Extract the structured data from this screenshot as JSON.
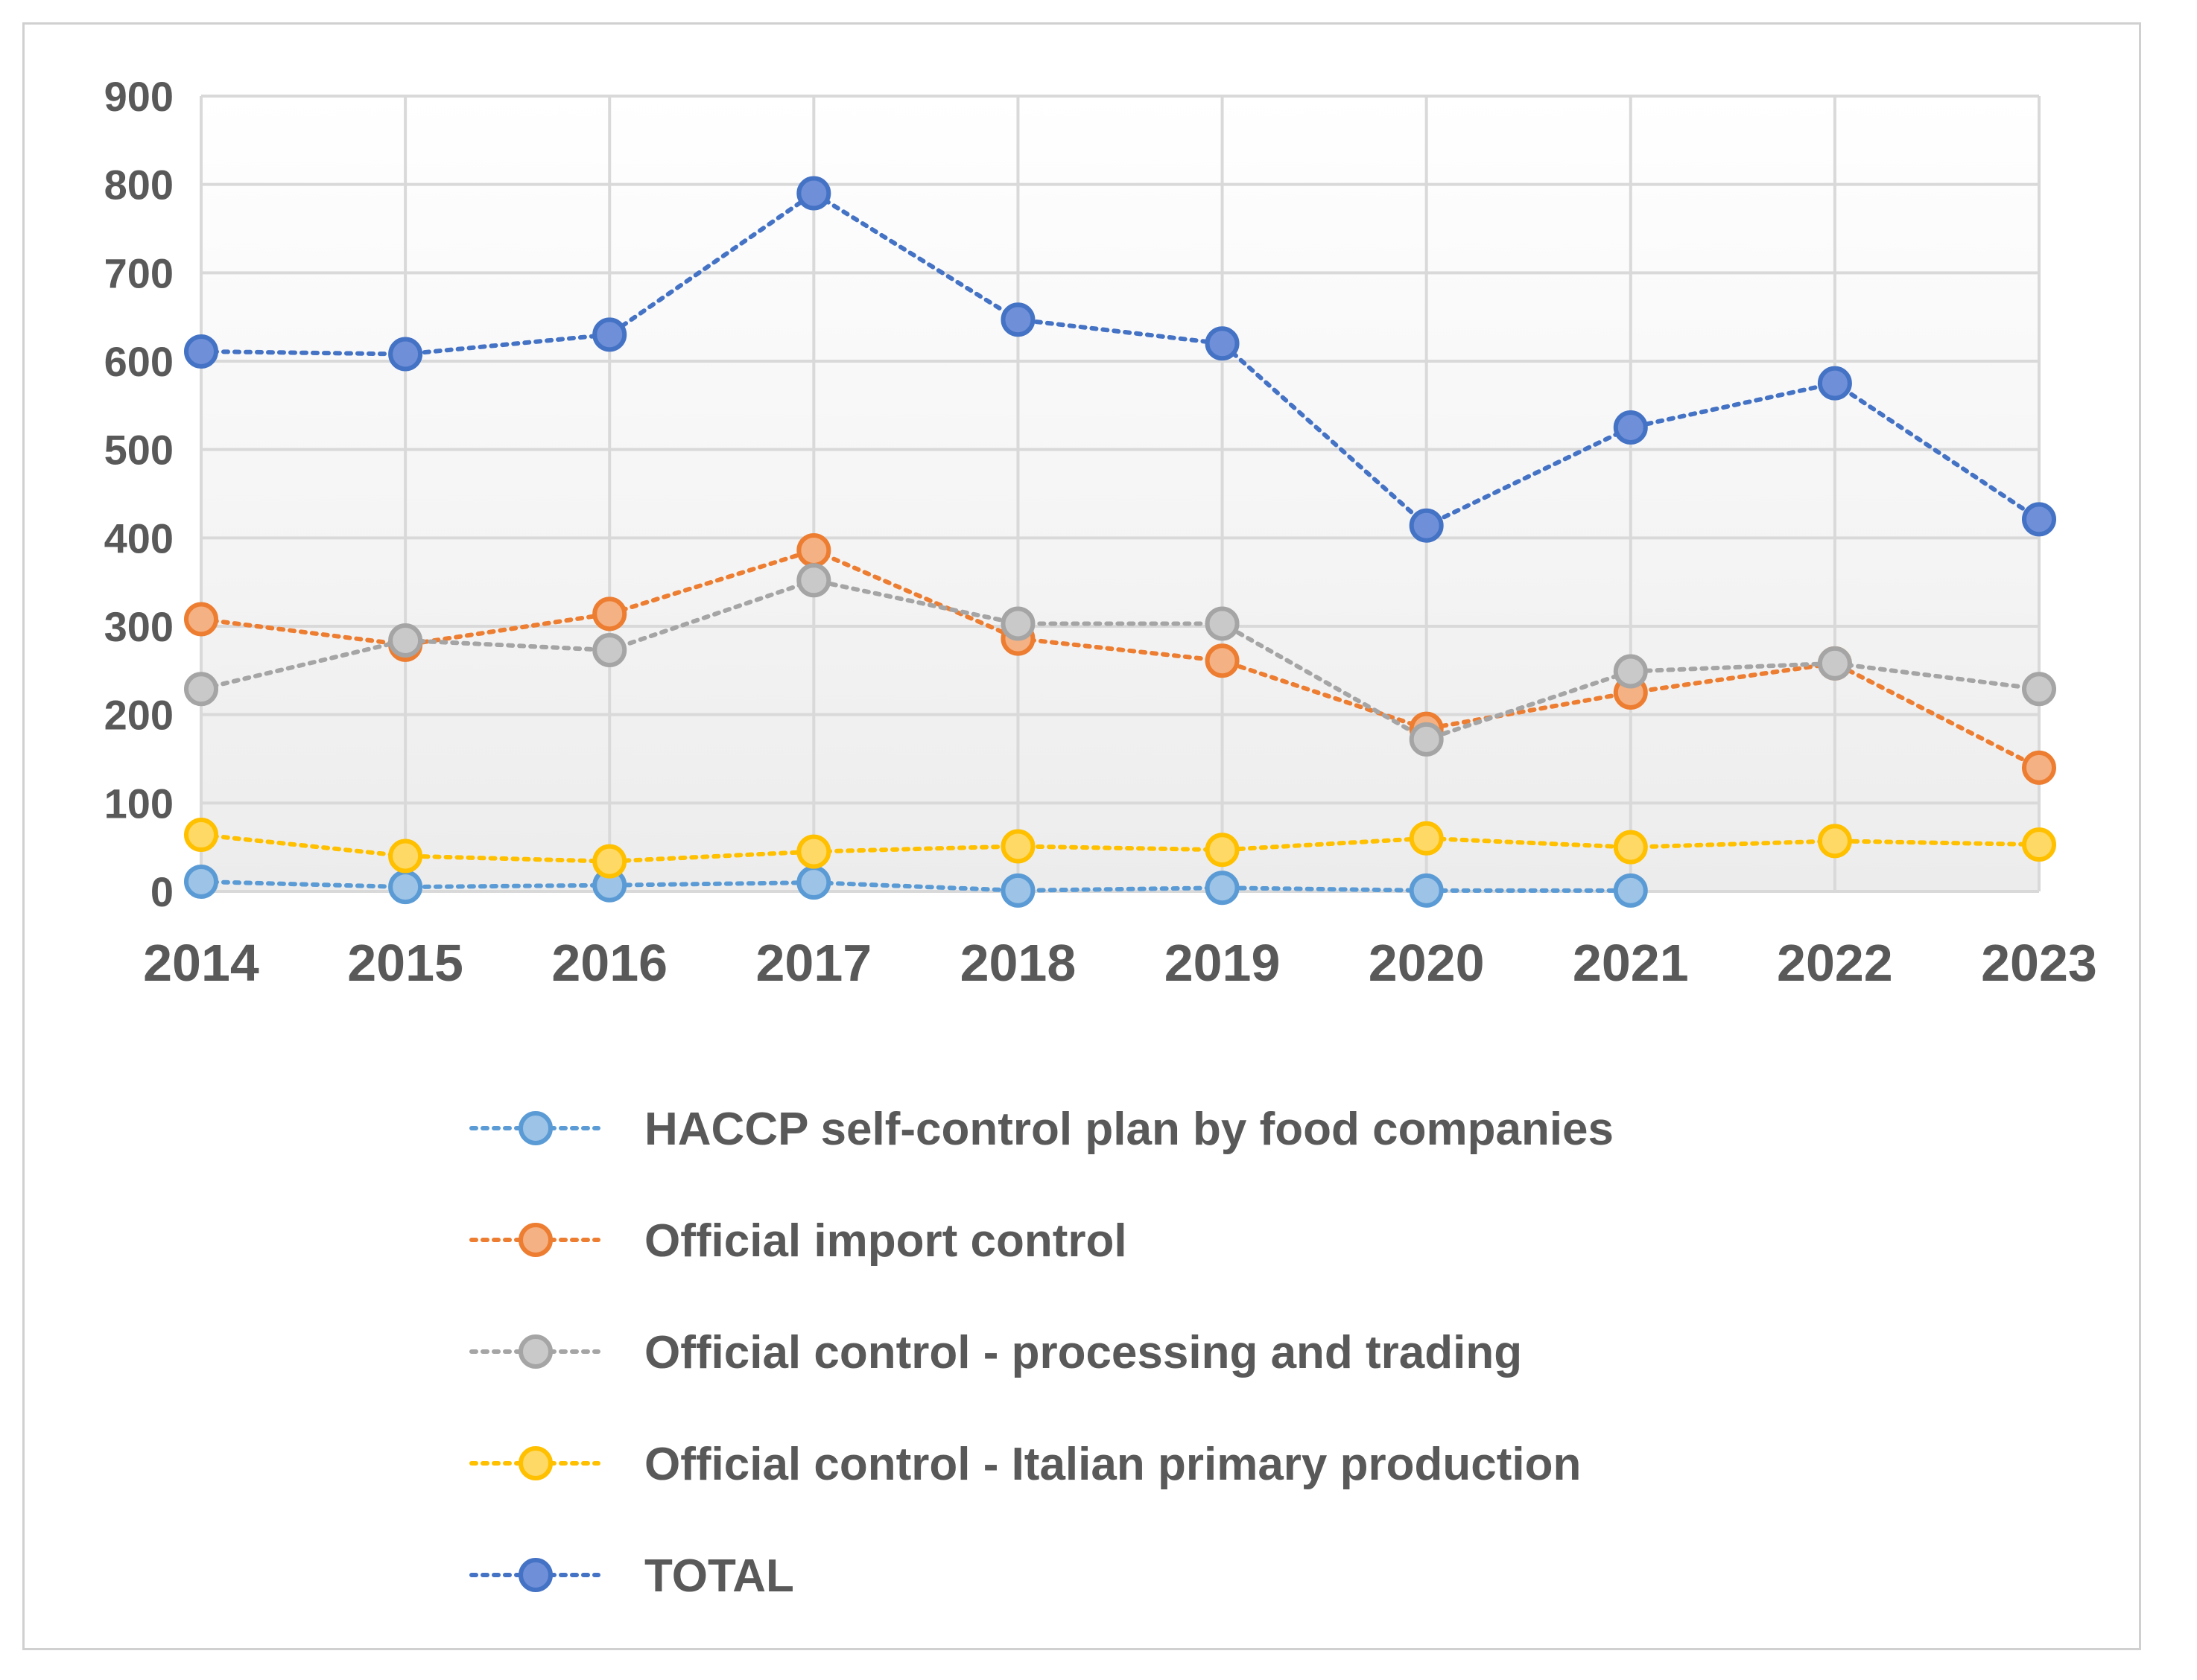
{
  "chart_data": {
    "type": "line",
    "title": "",
    "xlabel": "",
    "ylabel": "",
    "categories": [
      "2014",
      "2015",
      "2016",
      "2017",
      "2018",
      "2019",
      "2020",
      "2021",
      "2022",
      "2023"
    ],
    "ylim": [
      0,
      900
    ],
    "yticks": [
      0,
      100,
      200,
      300,
      400,
      500,
      600,
      700,
      800,
      900
    ],
    "grid": true,
    "legend_position": "bottom",
    "line_style": "dotted",
    "series": [
      {
        "name": "HACCP self-control plan by food companies",
        "color": "#5B9BD5",
        "fill": "#9DC3E6",
        "values": [
          11,
          5,
          7,
          10,
          1,
          4,
          1,
          1,
          null,
          null
        ]
      },
      {
        "name": "Official import control",
        "color": "#ED7D31",
        "fill": "#F4B183",
        "values": [
          308,
          279,
          314,
          386,
          286,
          261,
          184,
          225,
          258,
          140
        ]
      },
      {
        "name": "Official control - processing and trading",
        "color": "#A5A5A5",
        "fill": "#C9C9C9",
        "values": [
          229,
          284,
          273,
          352,
          303,
          303,
          172,
          249,
          258,
          229
        ]
      },
      {
        "name": "Official control - Italian primary production",
        "color": "#FFC000",
        "fill": "#FFD966",
        "values": [
          64,
          40,
          34,
          45,
          51,
          47,
          60,
          50,
          57,
          53
        ]
      },
      {
        "name": "TOTAL",
        "color": "#4472C4",
        "fill": "#6F8FD8",
        "values": [
          611,
          608,
          630,
          790,
          647,
          620,
          414,
          525,
          575,
          421
        ]
      }
    ]
  }
}
